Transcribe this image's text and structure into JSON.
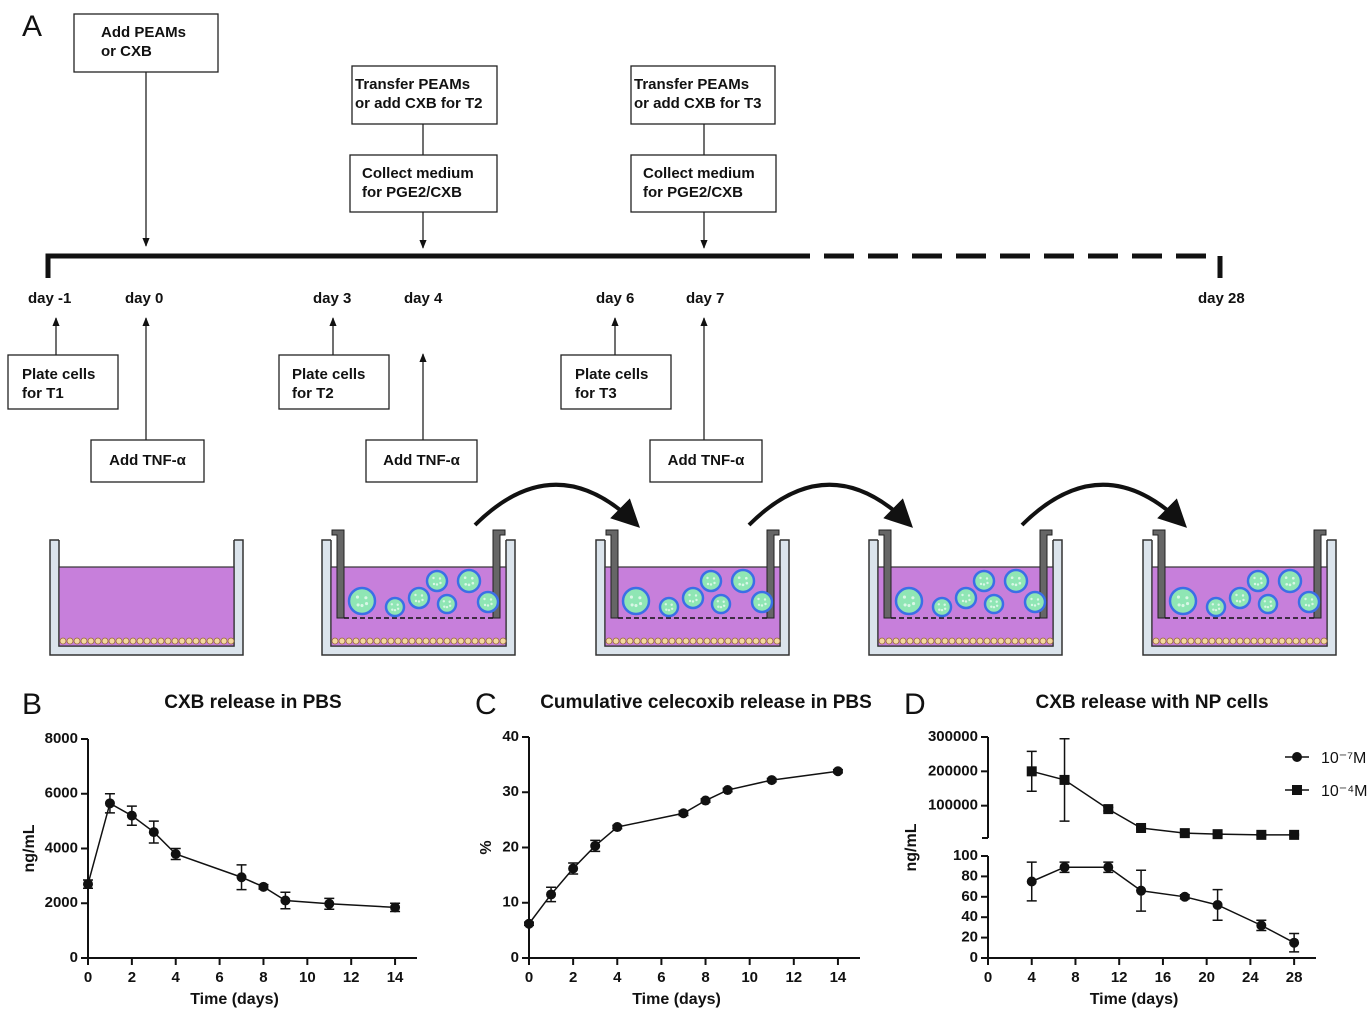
{
  "panel_a": {
    "label": "A",
    "top_boxes": [
      [
        "Add PEAMs",
        "or CXB"
      ],
      [
        "Transfer PEAMs",
        "or add CXB for T2"
      ],
      [
        "Collect medium",
        "for PGE2/CXB"
      ],
      [
        "Transfer PEAMs",
        "or add CXB for T3"
      ],
      [
        "Collect medium",
        "for PGE2/CXB"
      ]
    ],
    "days": [
      "day -1",
      "day 0",
      "day 3",
      "day 4",
      "day 6",
      "day 7",
      "day 28"
    ],
    "plate_boxes": [
      [
        "Plate cells",
        "for T1"
      ],
      [
        "Plate cells",
        "for T2"
      ],
      [
        "Plate cells",
        "for T3"
      ]
    ],
    "tnf_boxes": [
      "Add TNF-α",
      "Add TNF-α",
      "Add TNF-α"
    ]
  },
  "chart_data": [
    {
      "type": "line",
      "panel_label": "B",
      "title": "CXB release in PBS",
      "x_label": "Time (days)",
      "y_label": "ng/mL",
      "x": [
        0,
        1,
        2,
        3,
        4,
        7,
        8,
        9,
        11,
        14
      ],
      "series": [
        {
          "values": [
            2700,
            5650,
            5200,
            4600,
            3800,
            2950,
            2600,
            2100,
            1980,
            1850
          ],
          "errors": [
            150,
            350,
            350,
            400,
            200,
            450,
            80,
            300,
            200,
            150
          ],
          "color": "#111111",
          "marker": "circle"
        }
      ],
      "xlim": [
        0,
        15
      ],
      "xticks": [
        0,
        2,
        4,
        6,
        8,
        10,
        12,
        14
      ],
      "ylim": [
        0,
        8000
      ],
      "yticks": [
        0,
        2000,
        4000,
        6000,
        8000
      ]
    },
    {
      "type": "line",
      "panel_label": "C",
      "title": "Cumulative celecoxib release in PBS",
      "x_label": "Time (days)",
      "y_label": "%",
      "x": [
        0,
        1,
        2,
        3,
        4,
        7,
        8,
        9,
        11,
        14
      ],
      "series": [
        {
          "values": [
            6.2,
            11.5,
            16.2,
            20.3,
            23.7,
            26.2,
            28.5,
            30.4,
            32.2,
            33.8
          ],
          "errors": [
            0.3,
            1.3,
            1.0,
            1.0,
            0.3,
            0.4,
            0.3,
            0.3,
            0.3,
            0.3
          ],
          "color": "#111111",
          "marker": "circle"
        }
      ],
      "xlim": [
        0,
        15
      ],
      "xticks": [
        0,
        2,
        4,
        6,
        8,
        10,
        12,
        14
      ],
      "ylim": [
        0,
        40
      ],
      "yticks": [
        0,
        10,
        20,
        30,
        40
      ]
    },
    {
      "type": "line",
      "panel_label": "D",
      "title": "CXB release with NP cells",
      "x_label": "Time (days)",
      "y_label": "ng/mL",
      "x": [
        4,
        7,
        11,
        14,
        18,
        21,
        25,
        28
      ],
      "series": [
        {
          "name": "10⁻⁷M",
          "values": [
            75,
            89,
            89,
            66,
            60,
            52,
            32,
            15
          ],
          "errors": [
            19,
            5,
            5,
            20,
            2,
            15,
            5,
            9
          ],
          "color": "#111111",
          "marker": "circle"
        },
        {
          "name": "10⁻⁴M",
          "axis": "upper",
          "values": [
            200000,
            175000,
            90000,
            35000,
            20000,
            17000,
            15000,
            15000
          ],
          "errors": [
            58000,
            120000,
            5000,
            3000,
            2000,
            2000,
            2000,
            2000
          ],
          "color": "#111111",
          "marker": "square"
        }
      ],
      "xlim": [
        0,
        30
      ],
      "xticks": [
        0,
        4,
        8,
        12,
        16,
        20,
        24,
        28
      ],
      "ylim": [
        0,
        100
      ],
      "yticks": [
        0,
        20,
        40,
        60,
        80,
        100
      ],
      "upper_ylim": [
        0,
        300000
      ],
      "upper_yticks": [
        100000,
        200000,
        300000
      ],
      "legend": "upper-right"
    }
  ]
}
